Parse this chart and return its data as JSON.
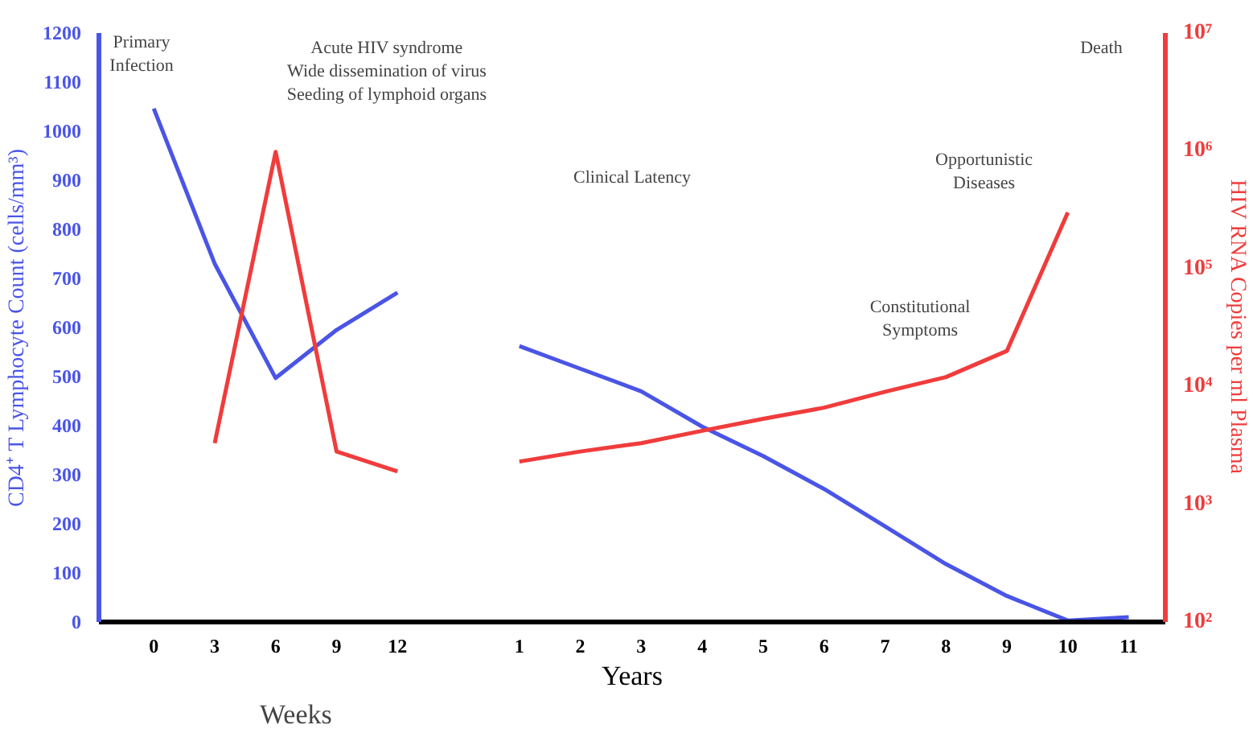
{
  "chart_data": {
    "type": "line",
    "xlabel": "Weeks",
    "ylabel": "CD4⁺ T Lymphocyte Count (cells/mm³)",
    "y2label": "HIV RNA Copies per ml Plasma",
    "categories": [
      "0",
      "3",
      "6",
      "9",
      "12",
      null,
      "1",
      "2",
      "3",
      "4",
      "5",
      "6",
      "7",
      "8",
      "9",
      "10",
      "11"
    ],
    "ylim": [
      0,
      1200
    ],
    "yticks": [
      0,
      100,
      200,
      300,
      400,
      500,
      600,
      700,
      800,
      900,
      1000,
      1100,
      1200
    ],
    "y2lim": [
      100,
      10000000
    ],
    "y2ticks": [
      {
        "value": 100,
        "label": "10²"
      },
      {
        "value": 1000,
        "label": "10³"
      },
      {
        "value": 10000,
        "label": "10⁴"
      },
      {
        "value": 100000,
        "label": "10⁵"
      },
      {
        "value": 1000000,
        "label": "10⁶"
      },
      {
        "value": 10000000,
        "label": "10⁷"
      }
    ],
    "log": "y2",
    "series": [
      {
        "color": "#4a55e6",
        "values": [
          1046,
          730,
          497,
          595,
          671,
          null,
          562,
          516,
          470,
          398,
          338,
          271,
          195,
          118,
          53,
          3,
          10
        ]
      },
      {
        "color": "#f03c3c",
        "axis": "y2",
        "values": [
          null,
          3300,
          980000,
          2800,
          1900,
          null,
          2300,
          2800,
          3300,
          4200,
          5300,
          6600,
          9000,
          12000,
          20000,
          300000,
          null
        ]
      }
    ],
    "annotations": [
      "Primary\nInfection",
      "Acute HIV syndrome\nWide dissemination of virus\nSeeding of lymphoid organs",
      "Clinical Latency",
      "Constitutional\nSymptoms",
      "Opportunistic\nDiseases",
      "Death",
      "Years"
    ]
  }
}
